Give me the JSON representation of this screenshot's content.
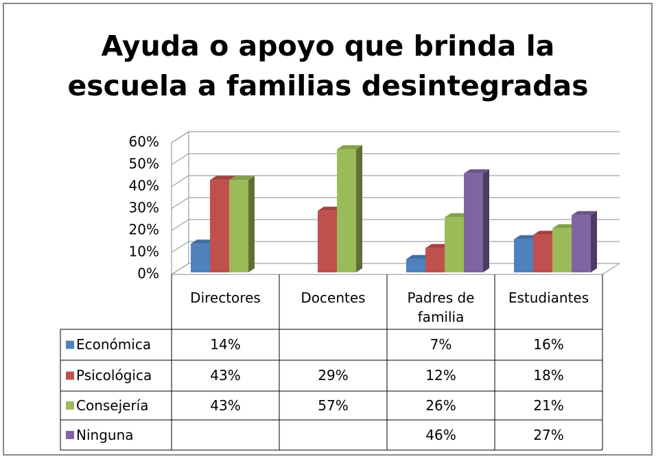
{
  "chart_data": {
    "type": "bar3d",
    "title": "Ayuda o apoyo que brinda la escuela a familias desintegradas",
    "categories": [
      "Directores",
      "Docentes",
      "Padres de familia",
      "Estudiantes"
    ],
    "series": [
      {
        "name": "Económica",
        "color": "#4f81bd",
        "values": [
          14,
          null,
          7,
          16
        ],
        "value_labels": [
          "14%",
          null,
          "7%",
          "16%"
        ]
      },
      {
        "name": "Psicológica",
        "color": "#c0504d",
        "values": [
          43,
          29,
          12,
          18
        ],
        "value_labels": [
          "43%",
          "29%",
          "12%",
          "18%"
        ]
      },
      {
        "name": "Consejería",
        "color": "#9bbb59",
        "values": [
          43,
          57,
          26,
          21
        ],
        "value_labels": [
          "43%",
          "57%",
          "26%",
          "21%"
        ]
      },
      {
        "name": "Ninguna",
        "color": "#8064a2",
        "values": [
          null,
          null,
          46,
          27
        ],
        "value_labels": [
          null,
          null,
          "46%",
          "27%"
        ]
      }
    ],
    "ylim": [
      0,
      60
    ],
    "yticks": [
      {
        "value": 0,
        "label": "0%"
      },
      {
        "value": 10,
        "label": "10%"
      },
      {
        "value": 20,
        "label": "20%"
      },
      {
        "value": 30,
        "label": "30%"
      },
      {
        "value": 40,
        "label": "40%"
      },
      {
        "value": 50,
        "label": "50%"
      },
      {
        "value": 60,
        "label": "60%"
      }
    ],
    "grid": true
  }
}
